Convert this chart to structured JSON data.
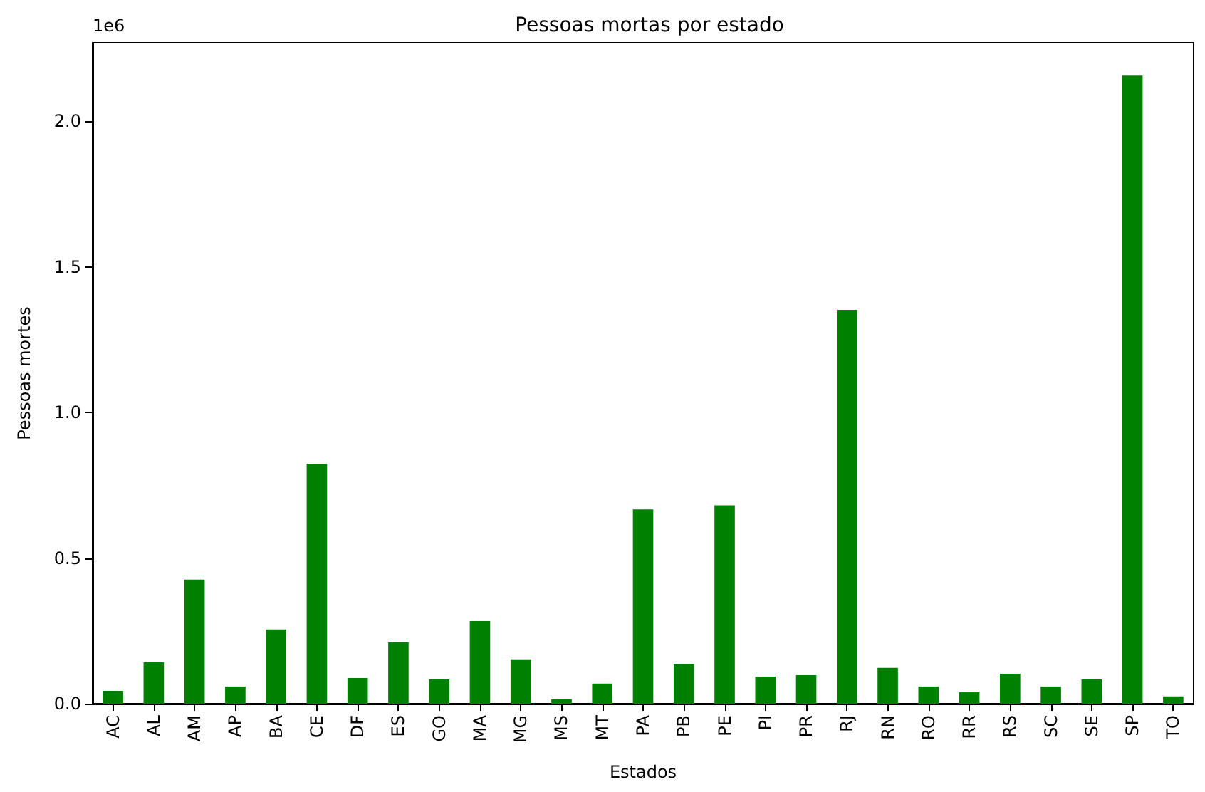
{
  "chart_data": {
    "type": "bar",
    "title": "Pessoas mortas por estado",
    "xlabel": "Estados",
    "ylabel": "Pessoas mortes",
    "annotations": [
      "1e6"
    ],
    "categories": [
      "AC",
      "AL",
      "AM",
      "AP",
      "BA",
      "CE",
      "DF",
      "ES",
      "GO",
      "MA",
      "MG",
      "MS",
      "MT",
      "PA",
      "PB",
      "PE",
      "PI",
      "PR",
      "RJ",
      "RN",
      "RO",
      "RR",
      "RS",
      "SC",
      "SE",
      "SP",
      "TO"
    ],
    "values": [
      0.044,
      0.142,
      0.426,
      0.059,
      0.255,
      0.824,
      0.088,
      0.211,
      0.083,
      0.284,
      0.152,
      0.015,
      0.069,
      0.667,
      0.137,
      0.681,
      0.093,
      0.098,
      1.353,
      0.123,
      0.059,
      0.039,
      0.103,
      0.059,
      0.083,
      2.157,
      0.025
    ],
    "color": "#008000",
    "ylim": [
      0,
      2.27
    ],
    "yticks": [
      {
        "value": 0,
        "label": "0.0"
      },
      0.5,
      {
        "value": 1,
        "label": "1.0"
      },
      1.5,
      {
        "value": 2,
        "label": "2.0"
      }
    ],
    "grid": false
  }
}
